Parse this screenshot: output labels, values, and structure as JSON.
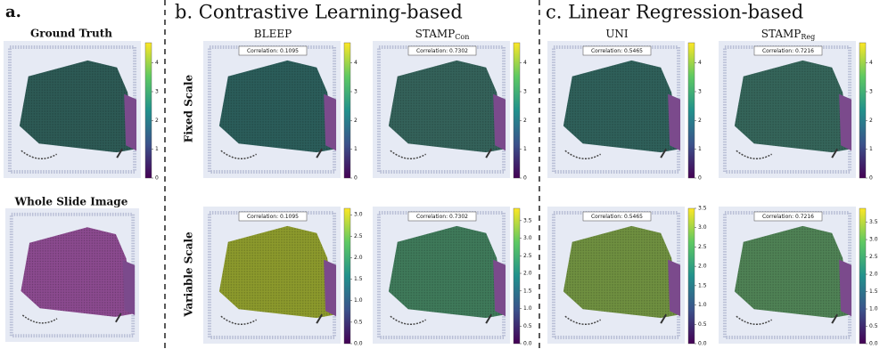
{
  "labels": {
    "a": "a.",
    "b": "b. Contrastive Learning-based",
    "c": "c. Linear Regression-based"
  },
  "ground_truth": {
    "title": "Ground Truth",
    "colorbar": {
      "lim": [
        0,
        4.7
      ],
      "ticks": [
        0,
        1,
        2,
        3,
        4
      ]
    }
  },
  "whole_slide_image": {
    "title": "Whole Slide Image"
  },
  "row_labels": [
    "Fixed Scale",
    "Variable Scale"
  ],
  "methods": [
    {
      "name": "BLEEP",
      "fixed": {
        "correlation": "Correlation: 0.1095",
        "colorbar": {
          "lim": [
            0,
            4.7
          ],
          "ticks": [
            0,
            1,
            2,
            3,
            4
          ]
        }
      },
      "variable": {
        "correlation": "Correlation: 0.1095",
        "colorbar": {
          "lim": [
            0,
            3.15
          ],
          "ticks": [
            {
              "value": 0,
              "label": "0.0"
            },
            0.5,
            {
              "value": 1,
              "label": "1.0"
            },
            1.5,
            {
              "value": 2,
              "label": "2.0"
            },
            2.5,
            {
              "value": 3,
              "label": "3.0"
            }
          ]
        }
      }
    },
    {
      "name": "STAMP",
      "sub": "Con",
      "fixed": {
        "correlation": "Correlation: 0.7302",
        "colorbar": {
          "lim": [
            0,
            4.7
          ],
          "ticks": [
            0,
            1,
            2,
            3,
            4
          ]
        }
      },
      "variable": {
        "correlation": "Correlation: 0.7302",
        "colorbar": {
          "lim": [
            0,
            3.85
          ],
          "ticks": [
            {
              "value": 0,
              "label": "0.0"
            },
            0.5,
            {
              "value": 1,
              "label": "1.0"
            },
            1.5,
            {
              "value": 2,
              "label": "2.0"
            },
            2.5,
            {
              "value": 3,
              "label": "3.0"
            },
            3.5
          ]
        }
      }
    },
    {
      "name": "UNI",
      "fixed": {
        "correlation": "Correlation: 0.5465",
        "colorbar": {
          "lim": [
            0,
            4.7
          ],
          "ticks": [
            0,
            1,
            2,
            3,
            4
          ]
        }
      },
      "variable": {
        "correlation": "Correlation: 0.5465",
        "colorbar": {
          "lim": [
            0,
            3.5
          ],
          "ticks": [
            {
              "value": 0,
              "label": "0.0"
            },
            0.5,
            {
              "value": 1,
              "label": "1.0"
            },
            1.5,
            {
              "value": 2,
              "label": "2.0"
            },
            2.5,
            {
              "value": 3,
              "label": "3.0"
            },
            3.5
          ]
        }
      }
    },
    {
      "name": "STAMP",
      "sub": "Reg",
      "fixed": {
        "correlation": "Correlation: 0.7216",
        "colorbar": {
          "lim": [
            0,
            4.7
          ],
          "ticks": [
            0,
            1,
            2,
            3,
            4
          ]
        }
      },
      "variable": {
        "correlation": "Correlation: 0.7216",
        "colorbar": {
          "lim": [
            0,
            3.9
          ],
          "ticks": [
            {
              "value": 0,
              "label": "0.0"
            },
            0.5,
            {
              "value": 1,
              "label": "1.0"
            },
            1.5,
            {
              "value": 2,
              "label": "2.0"
            },
            2.5,
            {
              "value": 3,
              "label": "3.0"
            },
            3.5
          ]
        }
      }
    }
  ]
}
